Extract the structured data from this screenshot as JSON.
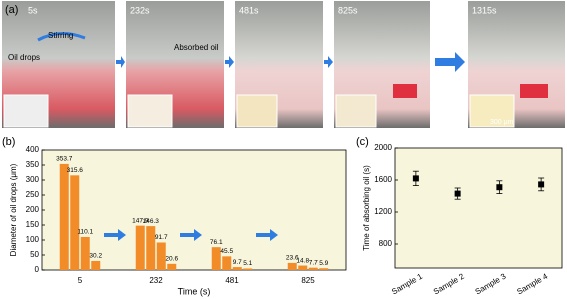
{
  "photo_panel": {
    "label": "(a)",
    "times": [
      "5s",
      "232s",
      "481s",
      "825s",
      "1315s"
    ],
    "stirring": "Stirring",
    "oil_drops": "Oil drops",
    "absorbed_oil": "Absorbed oil",
    "scale": "300 μm"
  },
  "chart_data": [
    {
      "type": "bar",
      "label": "(b)",
      "x_label": "Time  (s)",
      "y_label": "Diameter of oil drops (μm)",
      "categories": [
        "5",
        "232",
        "481",
        "825"
      ],
      "values": [
        [
          353.7,
          315.6,
          110.1,
          30.2
        ],
        [
          147.9,
          146.3,
          91.7,
          20.6
        ],
        [
          76.1,
          45.5,
          9.7,
          5.1
        ],
        [
          23.6,
          14.8,
          7.7,
          5.9
        ]
      ],
      "color": "#f28c28",
      "ylim": [
        0,
        400
      ],
      "yticks": [
        0,
        50,
        100,
        150,
        200,
        250,
        300,
        350,
        400
      ]
    },
    {
      "type": "errorbar",
      "label": "(c)",
      "y_label": "Time of absorbing oil (s)",
      "categories": [
        "Sample 1",
        "Sample 2",
        "Sample 3",
        "Sample 4"
      ],
      "values": [
        1620,
        1430,
        1510,
        1545
      ],
      "errors": [
        90,
        70,
        80,
        80
      ],
      "color": "#000000",
      "ylim": [
        500,
        2000
      ],
      "yticks": [
        800,
        1200,
        1600,
        2000
      ]
    }
  ]
}
